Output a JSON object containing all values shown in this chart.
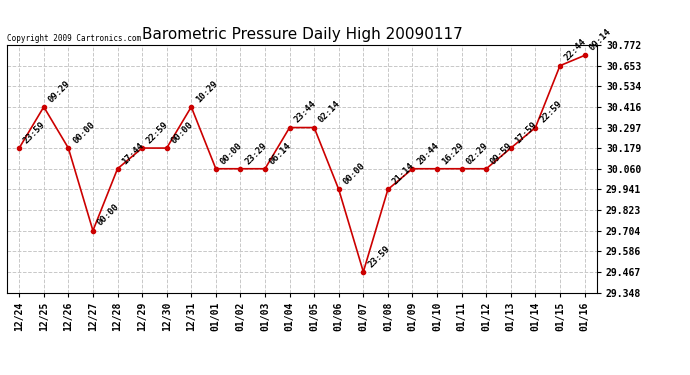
{
  "title": "Barometric Pressure Daily High 20090117",
  "copyright": "Copyright 2009 Cartronics.com",
  "x_labels": [
    "12/24",
    "12/25",
    "12/26",
    "12/27",
    "12/28",
    "12/29",
    "12/30",
    "12/31",
    "01/01",
    "01/02",
    "01/03",
    "01/04",
    "01/05",
    "01/06",
    "01/07",
    "01/08",
    "01/09",
    "01/10",
    "01/11",
    "01/12",
    "01/13",
    "01/14",
    "01/15",
    "01/16"
  ],
  "y_values": [
    30.179,
    30.416,
    30.179,
    29.704,
    30.06,
    30.179,
    30.179,
    30.416,
    30.06,
    30.06,
    30.06,
    30.297,
    30.297,
    29.941,
    29.467,
    29.941,
    30.06,
    30.06,
    30.06,
    30.06,
    30.179,
    30.297,
    30.653,
    30.712
  ],
  "point_labels": [
    "23:59",
    "09:29",
    "00:00",
    "00:00",
    "17:44",
    "22:59",
    "00:00",
    "10:29",
    "00:00",
    "23:29",
    "06:14",
    "23:44",
    "02:14",
    "00:00",
    "23:59",
    "21:14",
    "20:44",
    "16:29",
    "02:29",
    "09:59",
    "17:59",
    "22:59",
    "22:44",
    "09:14"
  ],
  "ylim": [
    29.348,
    30.772
  ],
  "yticks": [
    29.348,
    29.467,
    29.586,
    29.704,
    29.823,
    29.941,
    30.06,
    30.179,
    30.297,
    30.416,
    30.534,
    30.653,
    30.772
  ],
  "line_color": "#cc0000",
  "marker_color": "#cc0000",
  "bg_color": "#ffffff",
  "grid_color": "#c8c8c8",
  "title_fontsize": 11,
  "tick_fontsize": 7,
  "label_fontsize": 6.5
}
